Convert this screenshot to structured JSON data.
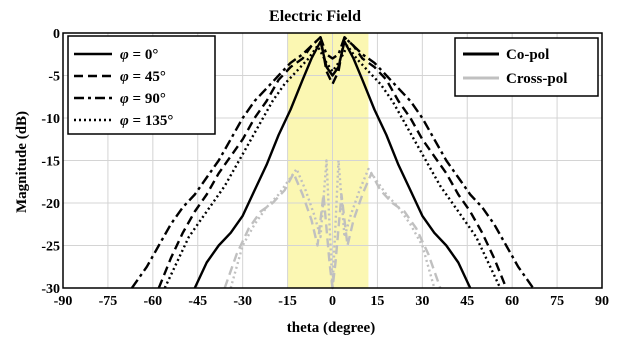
{
  "chart_data": {
    "type": "line",
    "title": "Electric Field",
    "xlabel": "theta (degree)",
    "ylabel": "Magnitude (dB)",
    "xlim": [
      -90,
      90
    ],
    "ylim": [
      -30,
      0
    ],
    "x_ticks": [
      -90,
      -75,
      -60,
      -45,
      -30,
      -15,
      0,
      15,
      30,
      45,
      60,
      75,
      90
    ],
    "y_ticks": [
      0,
      -5,
      -10,
      -15,
      -20,
      -25,
      -30
    ],
    "x_tick_labels": [
      "-90",
      "-75",
      "-60",
      "-45",
      "-30",
      "-15",
      "0",
      "15",
      "30",
      "45",
      "60",
      "75",
      "90"
    ],
    "y_tick_labels": [
      "0",
      "-5",
      "-10",
      "-15",
      "-20",
      "-25",
      "-30"
    ],
    "grid": true,
    "highlight_band": {
      "x_range": [
        -15,
        12
      ],
      "color": "#fbf7b2"
    },
    "legend_phi": [
      {
        "symbol": "φ",
        "text": " = 0°",
        "dash": "solid"
      },
      {
        "symbol": "φ",
        "text": " = 45°",
        "dash": "dashed"
      },
      {
        "symbol": "φ",
        "text": " = 90°",
        "dash": "dashdot"
      },
      {
        "symbol": "φ",
        "text": " = 135°",
        "dash": "dotted"
      }
    ],
    "legend_pol": [
      {
        "label": "Co-pol",
        "color": "#000000"
      },
      {
        "label": "Cross-pol",
        "color": "#c0c0c0"
      }
    ],
    "series": [
      {
        "group": "Co-pol",
        "phi_deg": 0,
        "dash": "solid",
        "color": "#000000",
        "x": [
          -46,
          -42,
          -38,
          -34,
          -30,
          -26,
          -22,
          -18,
          -14,
          -10,
          -7,
          -4,
          -2,
          0,
          2,
          4,
          7,
          10,
          14,
          18,
          22,
          26,
          30,
          34,
          38,
          42,
          46
        ],
        "y": [
          -30,
          -27,
          -25,
          -23.5,
          -21.5,
          -18.5,
          -15.5,
          -12,
          -9,
          -5.5,
          -3,
          -1,
          -4,
          -5,
          -4,
          -1,
          -3,
          -5.5,
          -9,
          -12,
          -15.5,
          -18.5,
          -21.5,
          -23.5,
          -25,
          -27,
          -30
        ]
      },
      {
        "group": "Co-pol",
        "phi_deg": 45,
        "dash": "dashed",
        "color": "#000000",
        "x": [
          -58,
          -54,
          -50,
          -46,
          -42,
          -38,
          -34,
          -30,
          -26,
          -22,
          -18,
          -14,
          -10,
          -7,
          -4,
          -2,
          0,
          2,
          4,
          7,
          10,
          14,
          18,
          22,
          26,
          30,
          34,
          38,
          42,
          46,
          50,
          54,
          58
        ],
        "y": [
          -30,
          -26.5,
          -23.5,
          -21,
          -19,
          -16.5,
          -14.5,
          -12.5,
          -10,
          -8,
          -5.5,
          -4,
          -3,
          -1.5,
          -0.5,
          -4.5,
          -6,
          -4.5,
          -0.5,
          -1.5,
          -3,
          -4,
          -5.5,
          -8,
          -10,
          -12.5,
          -14.5,
          -16.5,
          -19,
          -21,
          -23.5,
          -26.5,
          -30
        ]
      },
      {
        "group": "Co-pol",
        "phi_deg": 90,
        "dash": "dashdot",
        "color": "#000000",
        "x": [
          -67,
          -62,
          -58,
          -54,
          -50,
          -46,
          -42,
          -38,
          -34,
          -30,
          -26,
          -22,
          -18,
          -14,
          -10,
          -7,
          -4,
          -2,
          0,
          2,
          4,
          7,
          10,
          14,
          18,
          22,
          26,
          30,
          34,
          38,
          42,
          46,
          50,
          54,
          58,
          62,
          67
        ],
        "y": [
          -30,
          -27.5,
          -25,
          -22.5,
          -20.5,
          -19,
          -17,
          -15,
          -12.5,
          -10,
          -8,
          -6.5,
          -5,
          -3.5,
          -2.5,
          -1.5,
          -0.5,
          -2.5,
          -3,
          -2.5,
          -0.5,
          -1.5,
          -2.5,
          -3.5,
          -5,
          -6.5,
          -8,
          -10,
          -12.5,
          -15,
          -17,
          -19,
          -20.5,
          -22.5,
          -25,
          -27.5,
          -30
        ]
      },
      {
        "group": "Co-pol",
        "phi_deg": 135,
        "dash": "dotted",
        "color": "#000000",
        "x": [
          -56,
          -52,
          -48,
          -44,
          -40,
          -36,
          -32,
          -28,
          -24,
          -20,
          -16,
          -12,
          -8,
          -5,
          -2,
          0,
          2,
          5,
          8,
          12,
          16,
          20,
          24,
          28,
          32,
          36,
          40,
          44,
          48,
          52,
          56
        ],
        "y": [
          -30,
          -27,
          -24,
          -22,
          -20,
          -18,
          -15.5,
          -13,
          -10.5,
          -8,
          -6,
          -4.5,
          -3,
          -1.5,
          -3.5,
          -4.5,
          -3.5,
          -1.5,
          -3,
          -4.5,
          -6,
          -8,
          -10.5,
          -13,
          -15.5,
          -18,
          -20,
          -22,
          -24,
          -27,
          -30
        ]
      },
      {
        "group": "Cross-pol",
        "phi_deg": 45,
        "dash": "dashed",
        "color": "#c0c0c0",
        "x": [
          -36,
          -32,
          -28,
          -24,
          -20,
          -16,
          -13,
          -10,
          -7,
          -5,
          -3,
          -1,
          0,
          1,
          3,
          5,
          7,
          10,
          13,
          16,
          20,
          24,
          28,
          32,
          36
        ],
        "y": [
          -30,
          -26,
          -23,
          -21,
          -20,
          -18.5,
          -16.5,
          -19,
          -22,
          -25,
          -19,
          -27,
          -30,
          -27,
          -19,
          -25,
          -22,
          -19,
          -16.5,
          -18.5,
          -20,
          -21,
          -23,
          -26,
          -30
        ]
      },
      {
        "group": "Cross-pol",
        "phi_deg": 135,
        "dash": "dotted",
        "color": "#c0c0c0",
        "x": [
          -34,
          -30,
          -26,
          -22,
          -18,
          -15,
          -12,
          -9,
          -6,
          -4,
          -2,
          0,
          2,
          4,
          6,
          9,
          12,
          15,
          18,
          22,
          26,
          30,
          34
        ],
        "y": [
          -30,
          -25,
          -22.5,
          -20.5,
          -19,
          -17.5,
          -16,
          -18.5,
          -21.5,
          -24,
          -15,
          -30,
          -15,
          -24,
          -21.5,
          -18.5,
          -16,
          -17.5,
          -19,
          -20.5,
          -22.5,
          -25,
          -30
        ]
      }
    ]
  }
}
